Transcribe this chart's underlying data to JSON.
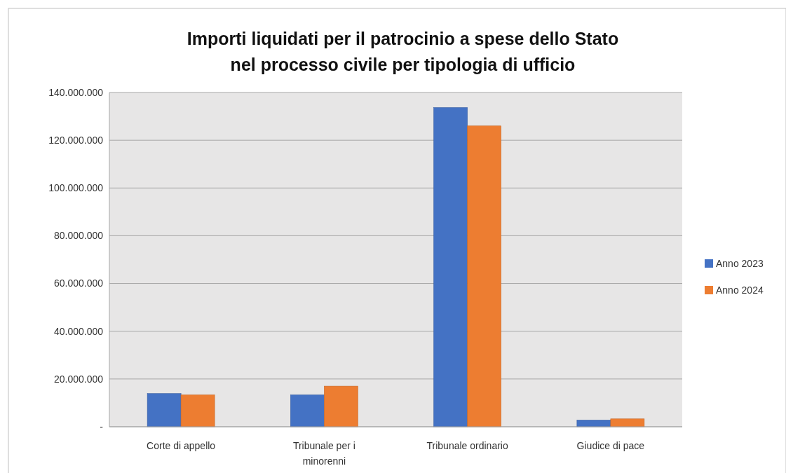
{
  "chart_data": {
    "type": "bar",
    "title": "Importi liquidati per il patrocinio a spese dello Stato\nnel processo civile per tipologia di ufficio",
    "categories": [
      "Corte di appello",
      "Tribunale per i minorenni",
      "Tribunale ordinario",
      "Giudice di pace"
    ],
    "series": [
      {
        "name": "Anno 2023",
        "color": "#4472c4",
        "values": [
          13900000,
          13400000,
          133700000,
          2800000
        ]
      },
      {
        "name": "Anno 2024",
        "color": "#ed7d31",
        "values": [
          13400000,
          17000000,
          126000000,
          3300000
        ]
      }
    ],
    "ylim": [
      0,
      140000000
    ],
    "yticks": [
      {
        "value": 0,
        "label": "-"
      },
      {
        "value": 20000000,
        "label": "20.000.000"
      },
      {
        "value": 40000000,
        "label": "40.000.000"
      },
      {
        "value": 60000000,
        "label": "60.000.000"
      },
      {
        "value": 80000000,
        "label": "80.000.000"
      },
      {
        "value": 100000000,
        "label": "100.000.000"
      },
      {
        "value": 120000000,
        "label": "120.000.000"
      },
      {
        "value": 140000000,
        "label": "140.000.000"
      }
    ],
    "grid": "y",
    "legend": "right"
  }
}
